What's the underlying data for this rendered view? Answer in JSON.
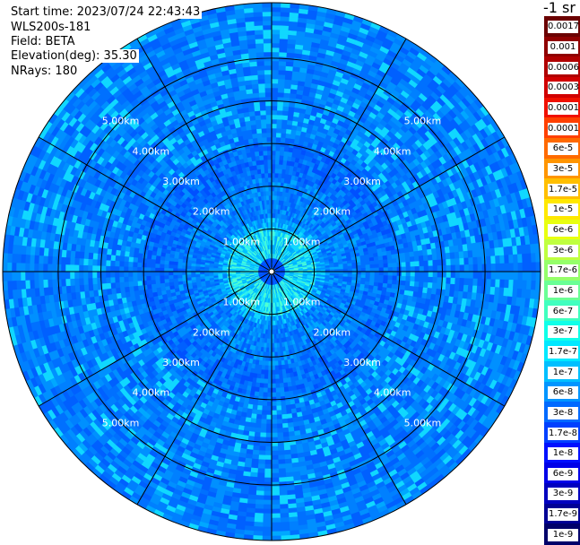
{
  "header": {
    "start_time": "Start time: 2023/07/24 22:43:43",
    "device": "WLS200s-181",
    "field": "Field: BETA",
    "elevation": "Elevation(deg): 35.30",
    "nrays": "NRays: 180"
  },
  "colorbar": {
    "title": "-1 sr",
    "labels": [
      "0.0017",
      "0.001",
      "0.0006",
      "0.0003",
      "0.00017",
      "0.0001",
      "6e-5",
      "3e-5",
      "1.7e-5",
      "1e-5",
      "6e-6",
      "3e-6",
      "1.7e-6",
      "1e-6",
      "6e-7",
      "3e-7",
      "1.7e-7",
      "1e-7",
      "6e-8",
      "3e-8",
      "1.7e-8",
      "1e-8",
      "6e-9",
      "3e-9",
      "1.7e-9",
      "1e-9"
    ],
    "colors": [
      "#6b0000",
      "#900000",
      "#b00000",
      "#d10000",
      "#f01000",
      "#ff4000",
      "#ff6a00",
      "#ff9500",
      "#ffbf00",
      "#ffe800",
      "#e8ff10",
      "#bfff40",
      "#95ff6a",
      "#6aff95",
      "#40ffbf",
      "#10ffe8",
      "#00e8ff",
      "#00bfff",
      "#0095ff",
      "#006aff",
      "#0040ff",
      "#0010ff",
      "#0000e8",
      "#0000bf",
      "#000095",
      "#00006a"
    ]
  },
  "chart_data": {
    "type": "heatmap",
    "projection": "polar PPI",
    "nrays": 180,
    "elevation_deg": 35.3,
    "range_rings_km": [
      1,
      2,
      3,
      4,
      5
    ],
    "ring_labels": [
      "1.00km",
      "2.00km",
      "3.00km",
      "4.00km",
      "5.00km"
    ],
    "spokes_deg": [
      0,
      30,
      60,
      90,
      120,
      150,
      180,
      210,
      240,
      270,
      300,
      330
    ],
    "max_range_km": 6.3,
    "field": "BETA",
    "units": "-1 sr",
    "value_range": [
      1e-09,
      0.0017
    ],
    "typical_values": {
      "near_range_0_1km": 1.7e-07,
      "mid_range_1_2km": 6e-08,
      "far_range_2_6km": 3e-08
    }
  }
}
